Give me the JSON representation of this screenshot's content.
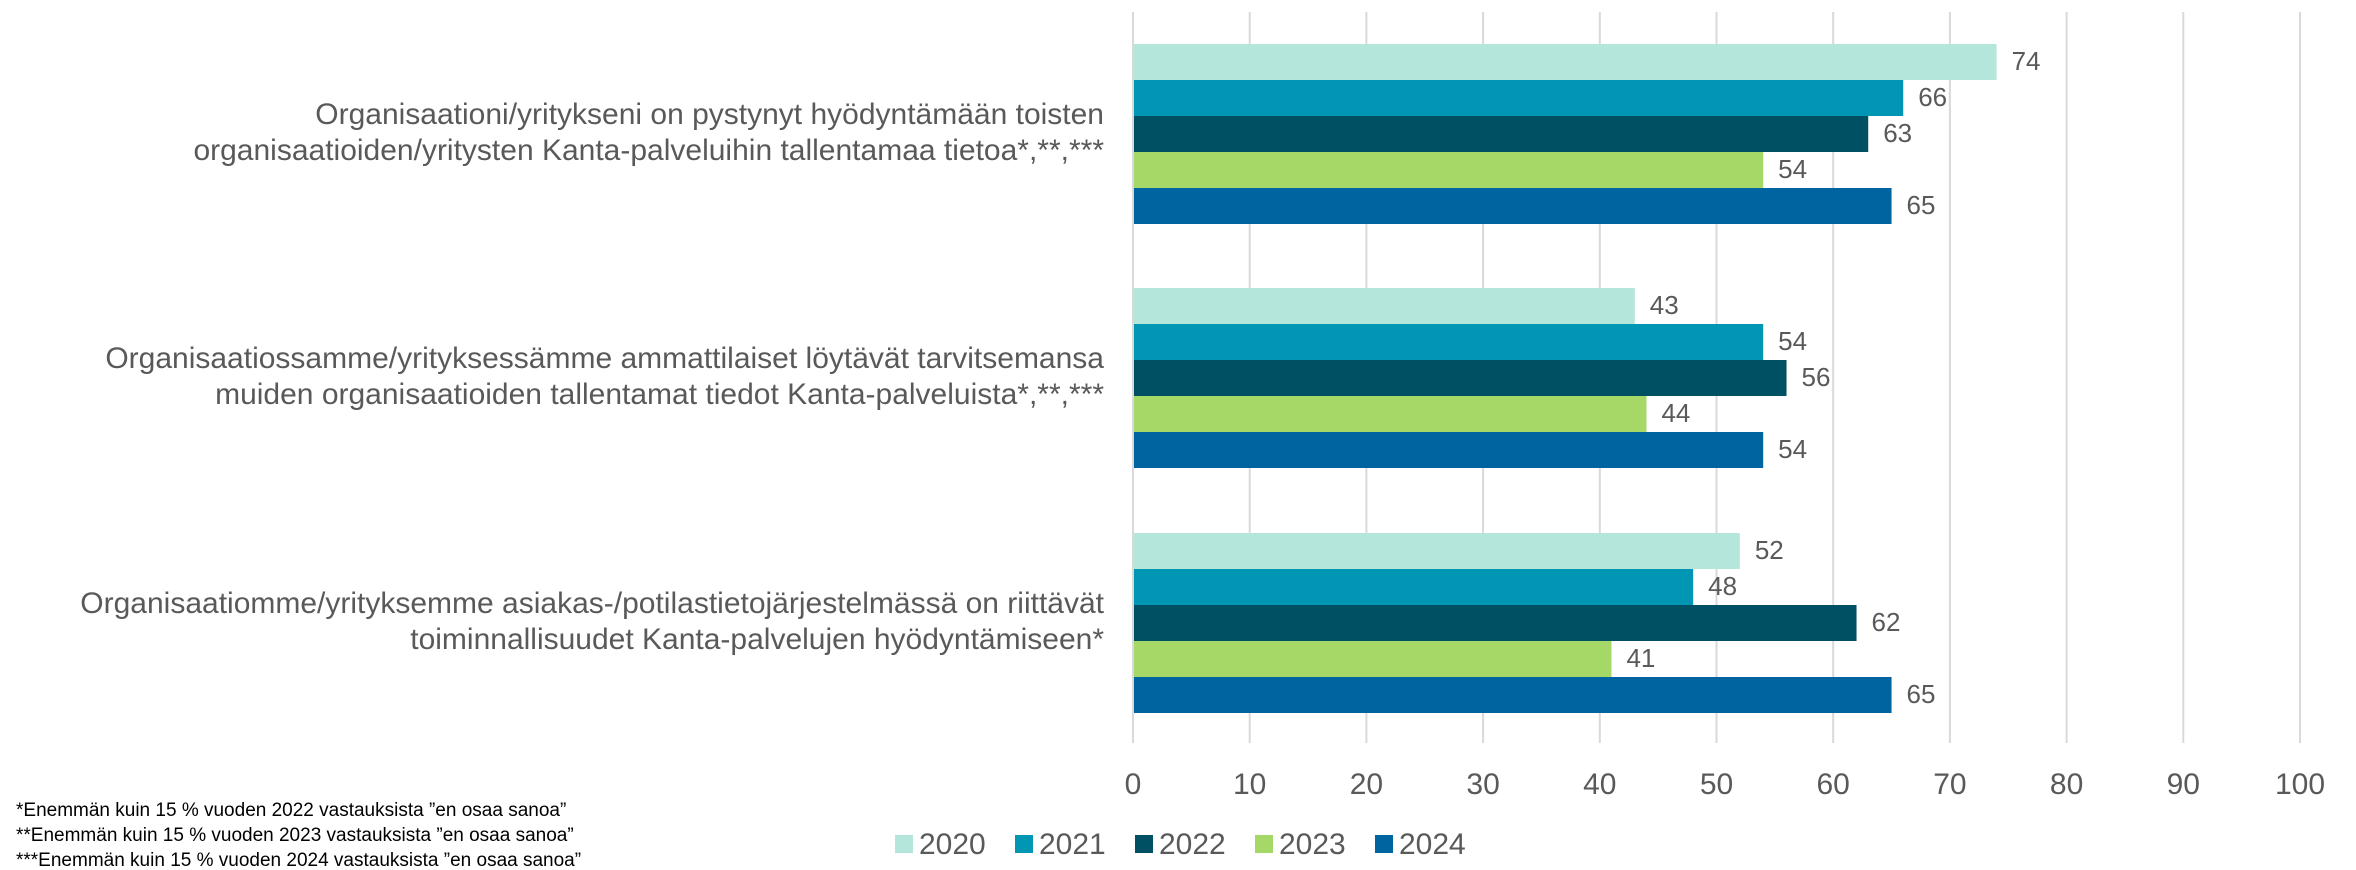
{
  "chart_data": {
    "type": "hbar",
    "categories": [
      [
        "Organisaationi/yritykseni on pystynyt hyödyntämään toisten",
        "organisaatioiden/yritysten Kanta-palveluihin tallentamaa tietoa*,**,***"
      ],
      [
        "Organisaatiossamme/yrityksessämme ammattilaiset löytävät tarvitsemansa",
        "muiden organisaatioiden tallentamat tiedot Kanta-palveluista*,**,***"
      ],
      [
        "Organisaatiomme/yrityksemme asiakas-/potilastietojärjestelmässä on riittävät",
        "toiminnallisuudet Kanta-palvelujen hyödyntämiseen*"
      ]
    ],
    "series": [
      {
        "name": "2020",
        "color": "#b5e6dc",
        "values": [
          74,
          43,
          52
        ]
      },
      {
        "name": "2021",
        "color": "#0096b4",
        "values": [
          66,
          54,
          48
        ]
      },
      {
        "name": "2022",
        "color": "#005064",
        "values": [
          63,
          56,
          62
        ]
      },
      {
        "name": "2023",
        "color": "#a5d867",
        "values": [
          54,
          44,
          41
        ]
      },
      {
        "name": "2024",
        "color": "#0064a0",
        "values": [
          65,
          54,
          65
        ]
      }
    ],
    "xlim": [
      0,
      100
    ],
    "xticks": [
      0,
      10,
      20,
      30,
      40,
      50,
      60,
      70,
      80,
      90,
      100
    ],
    "grid": true,
    "legend": "bottom",
    "notes": [
      "*Enemmän kuin 15 % vuoden 2022 vastauksista ”en osaa sanoa”",
      "**Enemmän kuin 15 % vuoden 2023 vastauksista ”en osaa sanoa”",
      "***Enemmän kuin 15 % vuoden 2024 vastauksista ”en osaa sanoa”"
    ]
  }
}
